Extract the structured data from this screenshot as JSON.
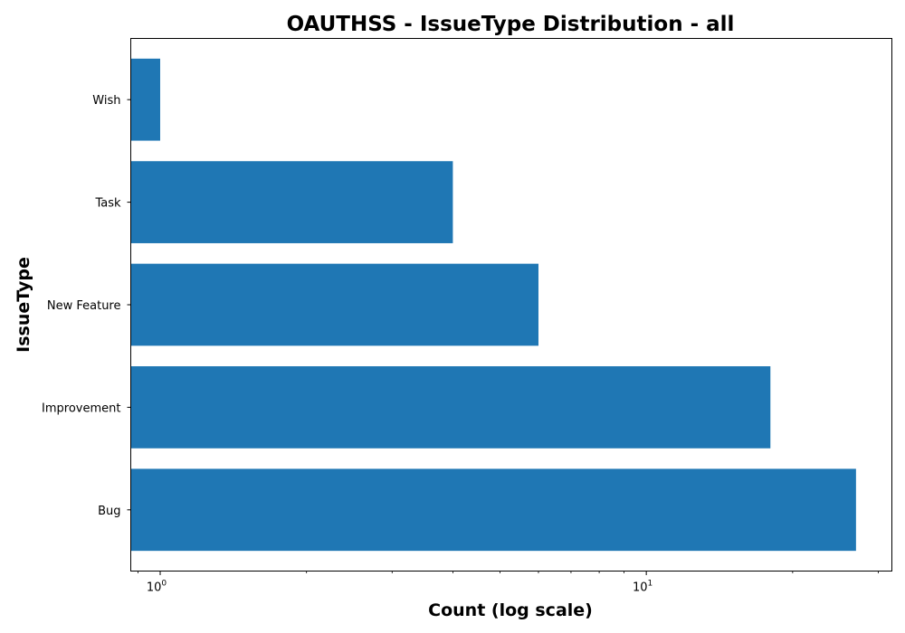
{
  "chart_data": {
    "type": "bar",
    "orientation": "horizontal",
    "title": "OAUTHSS - IssueType Distribution - all",
    "xlabel": "Count (log scale)",
    "ylabel": "IssueType",
    "categories": [
      "Bug",
      "Improvement",
      "New Feature",
      "Task",
      "Wish"
    ],
    "values": [
      27,
      18,
      6,
      4,
      1
    ],
    "x_scale": "log",
    "xlim": [
      0.87,
      32
    ],
    "x_major_ticks": [
      {
        "value": 1,
        "base": "10",
        "exponent": "0"
      },
      {
        "value": 10,
        "base": "10",
        "exponent": "1"
      }
    ],
    "bar_color": "#1f77b4",
    "grid": false,
    "legend": "none"
  }
}
